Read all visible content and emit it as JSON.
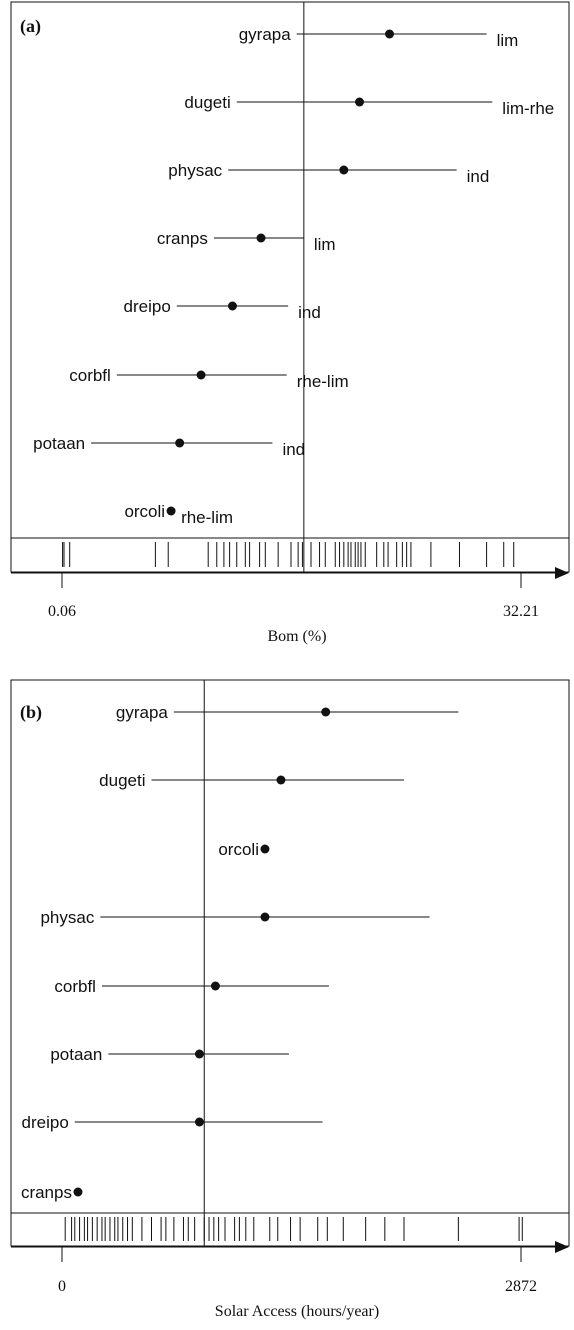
{
  "chart_data": [
    {
      "type": "scatter",
      "panel_label": "(a)",
      "xlabel": "Bom (%)",
      "xticks": [
        "0.06",
        "32.21"
      ],
      "xlim": [
        0.06,
        32.21
      ],
      "reference_line_x": 17.0,
      "species": [
        {
          "name": "gyrapa",
          "tag": "lim",
          "value": 23.0,
          "low": 16.5,
          "high": 29.8
        },
        {
          "name": "dugeti",
          "tag": "lim-rhe",
          "value": 20.9,
          "low": 12.3,
          "high": 30.2
        },
        {
          "name": "physac",
          "tag": "ind",
          "value": 19.8,
          "low": 11.7,
          "high": 27.7
        },
        {
          "name": "cranps",
          "tag": "lim",
          "value": 14.0,
          "low": 10.7,
          "high": 17.0
        },
        {
          "name": "dreipo",
          "tag": "ind",
          "value": 12.0,
          "low": 8.1,
          "high": 15.9
        },
        {
          "name": "corbfl",
          "tag": "rhe-lim",
          "value": 9.8,
          "low": 3.9,
          "high": 15.8
        },
        {
          "name": "potaan",
          "tag": "ind",
          "value": 8.3,
          "low": 2.1,
          "high": 14.8
        },
        {
          "name": "orcoli",
          "tag": "rhe-lim",
          "value": 7.7,
          "low": 7.7,
          "high": 7.7
        }
      ],
      "rug": [
        0.1,
        0.2,
        0.6,
        6.6,
        7.5,
        10.3,
        10.9,
        11.4,
        11.8,
        12.3,
        12.9,
        13.2,
        13.9,
        14.3,
        15.2,
        16.1,
        16.6,
        16.9,
        17.5,
        18.1,
        18.5,
        19.2,
        19.5,
        19.8,
        20.1,
        20.3,
        20.6,
        20.8,
        21.0,
        21.3,
        22.1,
        22.6,
        22.9,
        23.5,
        23.9,
        24.2,
        24.5,
        25.9,
        27.9,
        29.8,
        31.0,
        31.7
      ]
    },
    {
      "type": "scatter",
      "panel_label": "(b)",
      "xlabel": "Solar Access (hours/year)",
      "xticks": [
        "0",
        "2872"
      ],
      "xlim": [
        0,
        2872
      ],
      "reference_line_x": 890,
      "species": [
        {
          "name": "gyrapa",
          "tag": "",
          "value": 1650,
          "low": 700,
          "high": 2480
        },
        {
          "name": "dugeti",
          "tag": "",
          "value": 1370,
          "low": 560,
          "high": 2140
        },
        {
          "name": "orcoli",
          "tag": "",
          "value": 1270,
          "low": 1270,
          "high": 1270
        },
        {
          "name": "physac",
          "tag": "",
          "value": 1270,
          "low": 240,
          "high": 2300
        },
        {
          "name": "corbfl",
          "tag": "",
          "value": 960,
          "low": 250,
          "high": 1670
        },
        {
          "name": "potaan",
          "tag": "",
          "value": 860,
          "low": 290,
          "high": 1420
        },
        {
          "name": "dreipo",
          "tag": "",
          "value": 860,
          "low": 80,
          "high": 1630
        },
        {
          "name": "cranps",
          "tag": "",
          "value": 100,
          "low": 100,
          "high": 100
        }
      ],
      "rug": [
        20,
        60,
        80,
        110,
        140,
        160,
        190,
        220,
        250,
        270,
        300,
        330,
        350,
        380,
        410,
        440,
        500,
        560,
        620,
        650,
        700,
        760,
        790,
        830,
        890,
        920,
        950,
        980,
        1020,
        1080,
        1110,
        1150,
        1200,
        1300,
        1350,
        1430,
        1490,
        1600,
        1660,
        1760,
        1900,
        2020,
        2140,
        2480,
        2860,
        2880
      ]
    }
  ]
}
